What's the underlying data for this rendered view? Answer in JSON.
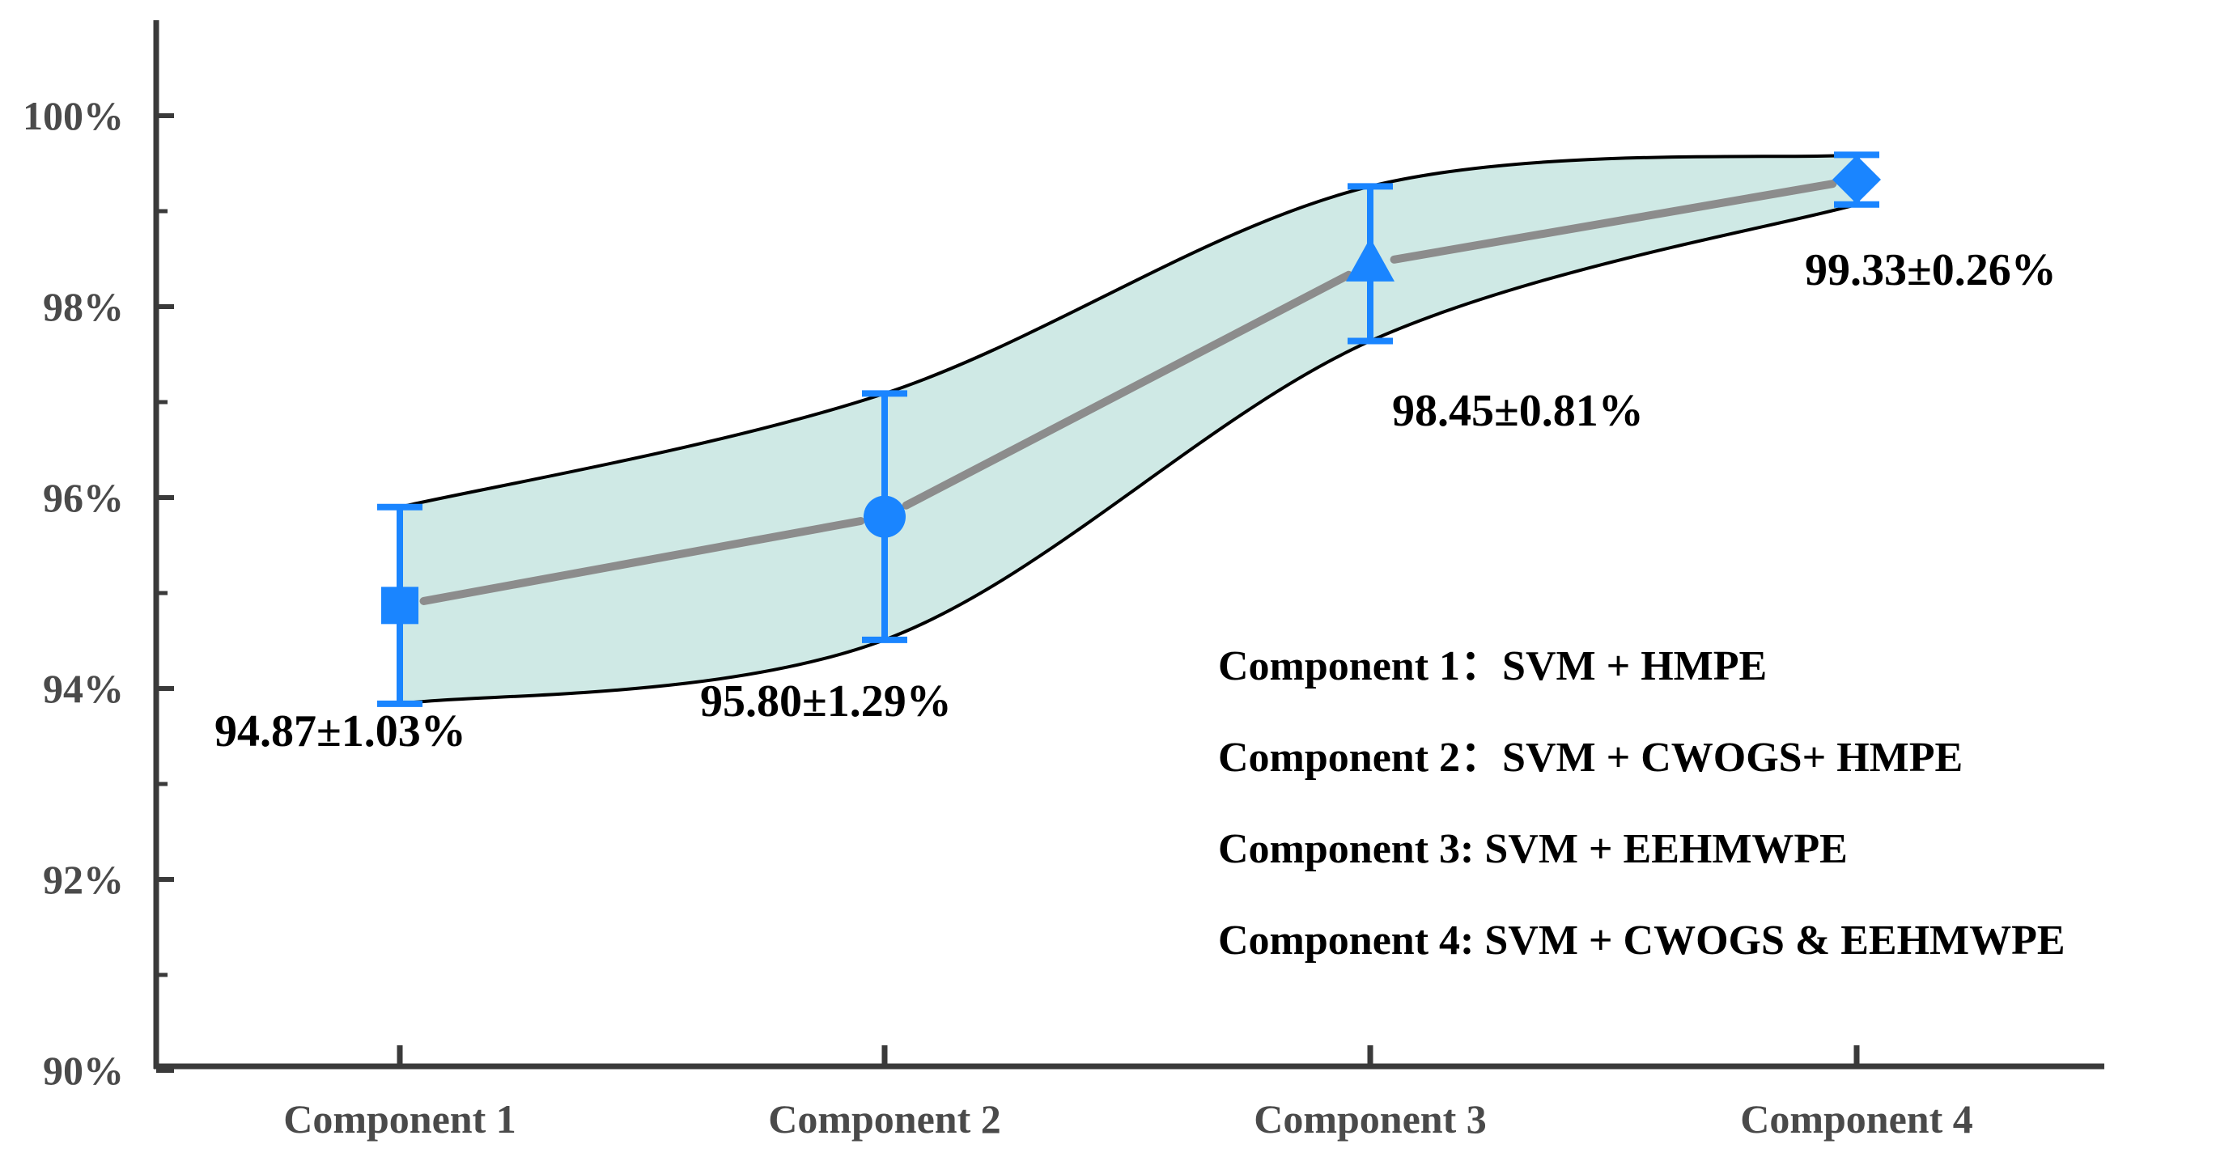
{
  "chart_data": {
    "type": "line",
    "categories": [
      "Component 1",
      "Component 2",
      "Component 3",
      "Component 4"
    ],
    "series": [
      {
        "values": [
          94.87,
          95.8,
          98.45,
          99.33
        ],
        "errors": [
          1.03,
          1.29,
          0.81,
          0.26
        ],
        "markers": [
          "square",
          "circle",
          "triangle",
          "diamond"
        ]
      }
    ],
    "data_labels": [
      "94.87±1.03%",
      "95.80±1.29%",
      "98.45±0.81%",
      "99.33±0.26%"
    ],
    "yticks": [
      {
        "value": 90,
        "label": "90%"
      },
      {
        "value": 92,
        "label": "92%"
      },
      {
        "value": 94,
        "label": "94%"
      },
      {
        "value": 96,
        "label": "96%"
      },
      {
        "value": 98,
        "label": "98%"
      },
      {
        "value": 100,
        "label": "100%"
      }
    ],
    "ylim": [
      90,
      101
    ],
    "grid": false,
    "annotations": [
      "Component 1：SVM + HMPE",
      "Component 2：SVM + CWOGS+ HMPE",
      "Component 3:   SVM + EEHMWPE",
      "Component 4:   SVM + CWOGS & EEHMWPE"
    ],
    "colors": {
      "marker": "#1a85ff",
      "line": "#8c8c8c",
      "band_fill": "#cfe9e5",
      "band_edge": "#000000",
      "axis": "#3a3a3a"
    }
  }
}
